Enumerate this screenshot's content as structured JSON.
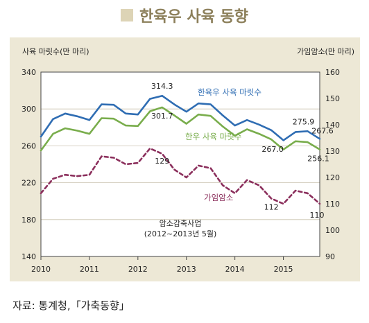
{
  "title": "한육우 사육 동향",
  "source": "자료: 통계청,「가축동향」",
  "colors": {
    "title_square": "#ddd4b6",
    "title_text": "#8c7f5a",
    "panel": "#ede8d6",
    "plot_bg": "#ffffff",
    "grid": "#c9c2ae",
    "series_total": "#2f6db3",
    "series_hanwoo": "#79ad4c",
    "series_price": "#8b2f5c"
  },
  "chart_data": {
    "type": "line",
    "ylabel_left": "사육 마릿수(만 마리)",
    "ylabel_right": "가임암소(만 마리)",
    "ylim_left": [
      140,
      340
    ],
    "ylim_right": [
      90,
      160
    ],
    "yticks_left": [
      "340",
      "300",
      "260",
      "220",
      "180",
      "140"
    ],
    "yticks_right": [
      "160",
      "150",
      "140",
      "130",
      "120",
      "110",
      "100",
      "90"
    ],
    "xticks": [
      "2010",
      "2011",
      "2012",
      "2013",
      "2014",
      "2015"
    ],
    "grid": true,
    "x": [
      2010.0,
      2010.25,
      2010.5,
      2010.75,
      2011.0,
      2011.25,
      2011.5,
      2011.75,
      2012.0,
      2012.25,
      2012.5,
      2012.75,
      2013.0,
      2013.25,
      2013.5,
      2013.75,
      2014.0,
      2014.25,
      2014.5,
      2014.75,
      2015.0,
      2015.25,
      2015.5,
      2015.75
    ],
    "series": [
      {
        "name": "한육우 사육 마릿수",
        "axis": "left",
        "style": "solid",
        "values": [
          270.0,
          289.0,
          295.0,
          292.0,
          288.0,
          305.0,
          304.5,
          295.0,
          294.0,
          311.0,
          314.3,
          305.0,
          297.0,
          306.0,
          305.0,
          293.0,
          282.0,
          288.0,
          283.0,
          277.0,
          266.0,
          275.0,
          275.9,
          267.6
        ]
      },
      {
        "name": "한우 사육 마릿수",
        "axis": "left",
        "style": "solid",
        "values": [
          255.0,
          273.0,
          279.0,
          276.5,
          273.0,
          290.0,
          289.5,
          282.0,
          281.5,
          297.5,
          301.7,
          293.0,
          284.0,
          294.0,
          292.5,
          281.0,
          271.0,
          278.0,
          273.0,
          267.0,
          256.0,
          265.0,
          264.0,
          256.1
        ]
      },
      {
        "name": "가임암소",
        "axis": "right",
        "style": "dashed",
        "values": [
          114.0,
          119.5,
          121.0,
          120.5,
          121.0,
          128.0,
          127.5,
          125.0,
          125.5,
          131.0,
          129.0,
          123.0,
          120.0,
          124.5,
          123.5,
          117.0,
          114.0,
          119.0,
          117.0,
          112.0,
          110.0,
          115.0,
          114.0,
          110.0
        ]
      }
    ],
    "data_labels": [
      {
        "series": 0,
        "index": 10,
        "text": "314.3"
      },
      {
        "series": 0,
        "index": 22,
        "text": "275.9"
      },
      {
        "series": 0,
        "index": 23,
        "text": "267.6"
      },
      {
        "series": 1,
        "index": 10,
        "text": "301.7"
      },
      {
        "series": 1,
        "index": 19,
        "text": "267.0"
      },
      {
        "series": 1,
        "index": 23,
        "text": "256.1"
      },
      {
        "series": 2,
        "index": 10,
        "text": "129"
      },
      {
        "series": 2,
        "index": 19,
        "text": "112"
      },
      {
        "series": 2,
        "index": 23,
        "text": "110"
      }
    ],
    "series_labels": [
      "한육우 사육 마릿수",
      "한우 사육 마릿수",
      "가임암소"
    ],
    "annotation": [
      "암소감축사업",
      "(2012~2013년 5월)"
    ]
  }
}
